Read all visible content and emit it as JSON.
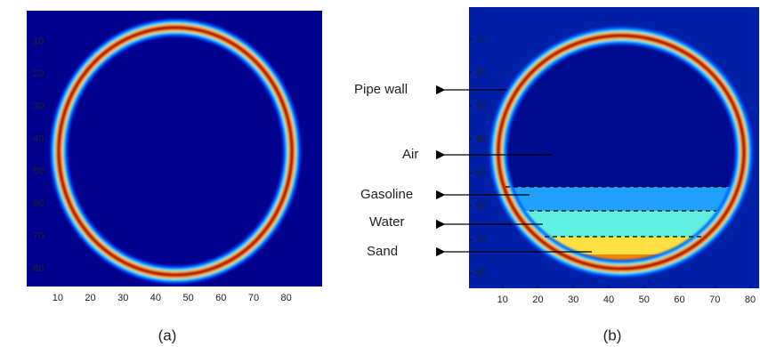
{
  "panels": [
    {
      "caption": "(a)",
      "xlim": [
        0.5,
        91
      ],
      "ylim": [
        0.5,
        85.5
      ],
      "xticks": [
        10,
        20,
        30,
        40,
        50,
        60,
        70,
        80
      ],
      "yticks": [
        10,
        20,
        30,
        40,
        50,
        60,
        70,
        80
      ]
    },
    {
      "caption": "(b)",
      "xlim": [
        0.5,
        82.5
      ],
      "ylim": [
        0.5,
        84.5
      ],
      "xticks": [
        10,
        20,
        30,
        40,
        50,
        60,
        70,
        80
      ],
      "yticks": [
        10,
        20,
        30,
        40,
        50,
        60,
        70,
        80
      ]
    }
  ],
  "annotations": [
    "Pipe wall",
    "Air",
    "Gasoline",
    "Water",
    "Sand"
  ]
}
